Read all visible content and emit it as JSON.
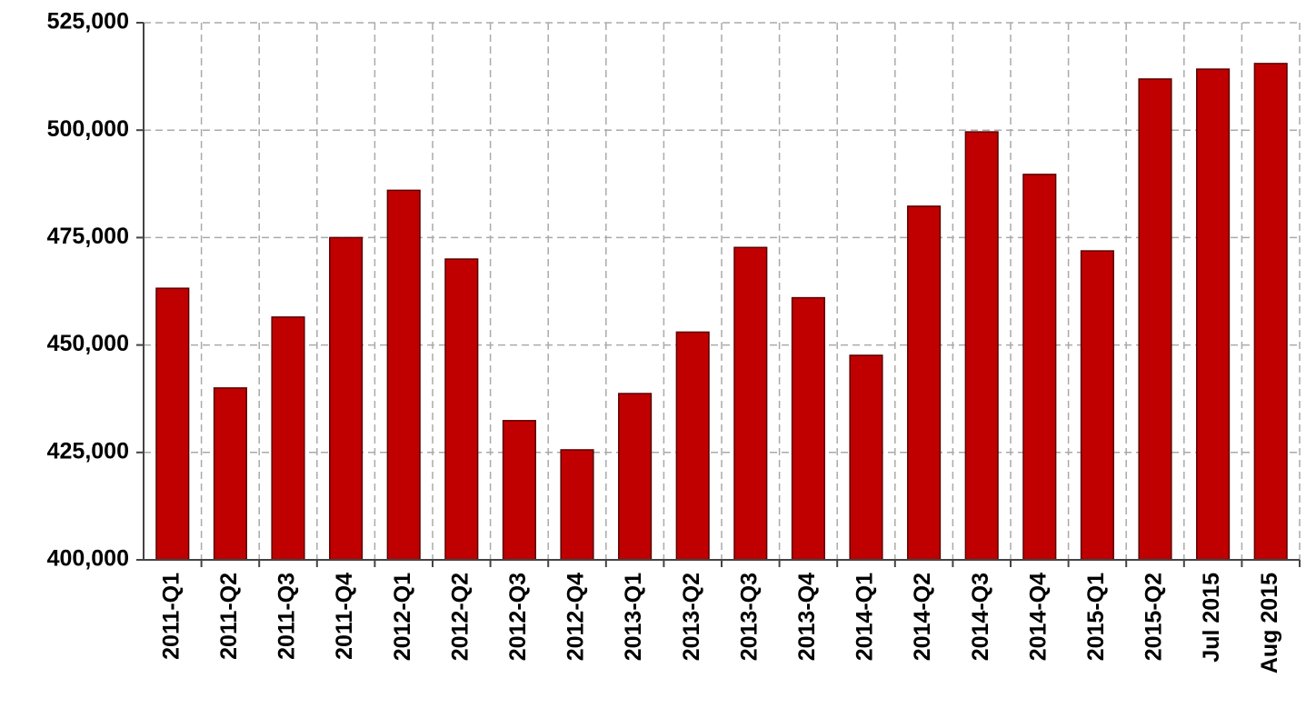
{
  "chart_data": {
    "type": "bar",
    "categories": [
      "2011-Q1",
      "2011-Q2",
      "2011-Q3",
      "2011-Q4",
      "2012-Q1",
      "2012-Q2",
      "2012-Q3",
      "2012-Q4",
      "2013-Q1",
      "2013-Q2",
      "2013-Q3",
      "2013-Q4",
      "2014-Q1",
      "2014-Q2",
      "2014-Q3",
      "2014-Q4",
      "2015-Q1",
      "2015-Q2",
      "Jul 2015",
      "Aug 2015"
    ],
    "values": [
      463200,
      440000,
      456500,
      475000,
      486000,
      470000,
      432400,
      425600,
      438700,
      453000,
      472700,
      461000,
      447600,
      482300,
      499600,
      489700,
      471900,
      511900,
      514200,
      515500
    ],
    "color": "#c00000",
    "ylim": [
      400000,
      525000
    ],
    "yticks": [
      {
        "value": 400000,
        "label": "400,000"
      },
      {
        "value": 425000,
        "label": "425,000"
      },
      {
        "value": 450000,
        "label": "450,000"
      },
      {
        "value": 475000,
        "label": "475,000"
      },
      {
        "value": 500000,
        "label": "500,000"
      },
      {
        "value": 525000,
        "label": "525,000"
      }
    ],
    "grid": true
  }
}
